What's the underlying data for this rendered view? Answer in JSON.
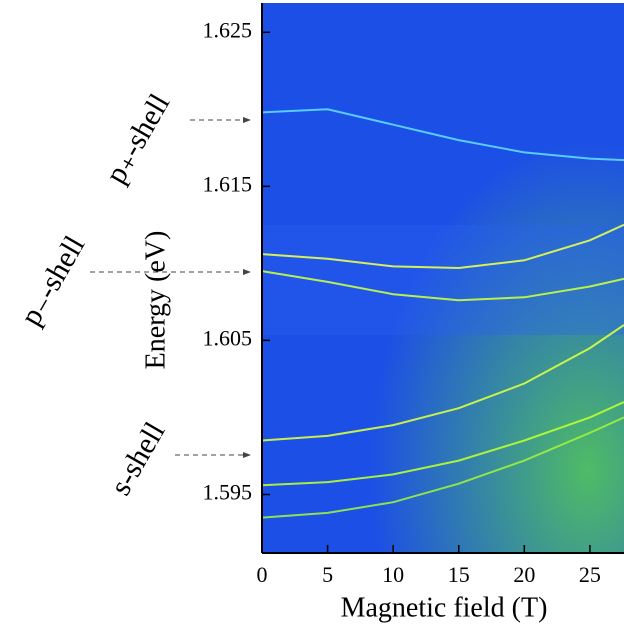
{
  "chart_data": {
    "type": "line",
    "x_label": "Magnetic field (T)",
    "y_label": "Energy (eV)",
    "annotations": [
      "p₊-shell",
      "p₋-shell",
      "s-shell"
    ],
    "xlim": [
      0,
      27.6
    ],
    "ylim": [
      1.5912,
      1.6269
    ],
    "xticks": [
      0,
      5,
      10,
      15,
      20,
      25
    ],
    "yticks": [
      1.595,
      1.605,
      1.615,
      1.625
    ],
    "x": [
      0,
      5,
      10,
      15,
      20,
      25,
      27.6
    ],
    "series": [
      {
        "color": "#d8ff40",
        "values": [
          1.5985,
          1.5988,
          1.5995,
          1.6006,
          1.6022,
          1.6045,
          1.606
        ]
      },
      {
        "color": "#b8ff30",
        "values": [
          1.5956,
          1.5958,
          1.5963,
          1.5972,
          1.5985,
          1.6,
          1.601
        ]
      },
      {
        "color": "#9cf040",
        "values": [
          1.5935,
          1.5938,
          1.5945,
          1.5957,
          1.5972,
          1.599,
          1.6
        ]
      },
      {
        "color": "#e8ff50",
        "values": [
          1.6106,
          1.6103,
          1.6098,
          1.6097,
          1.6102,
          1.6115,
          1.6125
        ]
      },
      {
        "color": "#c8ff40",
        "values": [
          1.6095,
          1.6088,
          1.608,
          1.6076,
          1.6078,
          1.6085,
          1.609
        ]
      },
      {
        "color": "#60d8ff",
        "values": [
          1.6198,
          1.62,
          1.619,
          1.618,
          1.6172,
          1.6168,
          1.6167
        ]
      }
    ]
  }
}
